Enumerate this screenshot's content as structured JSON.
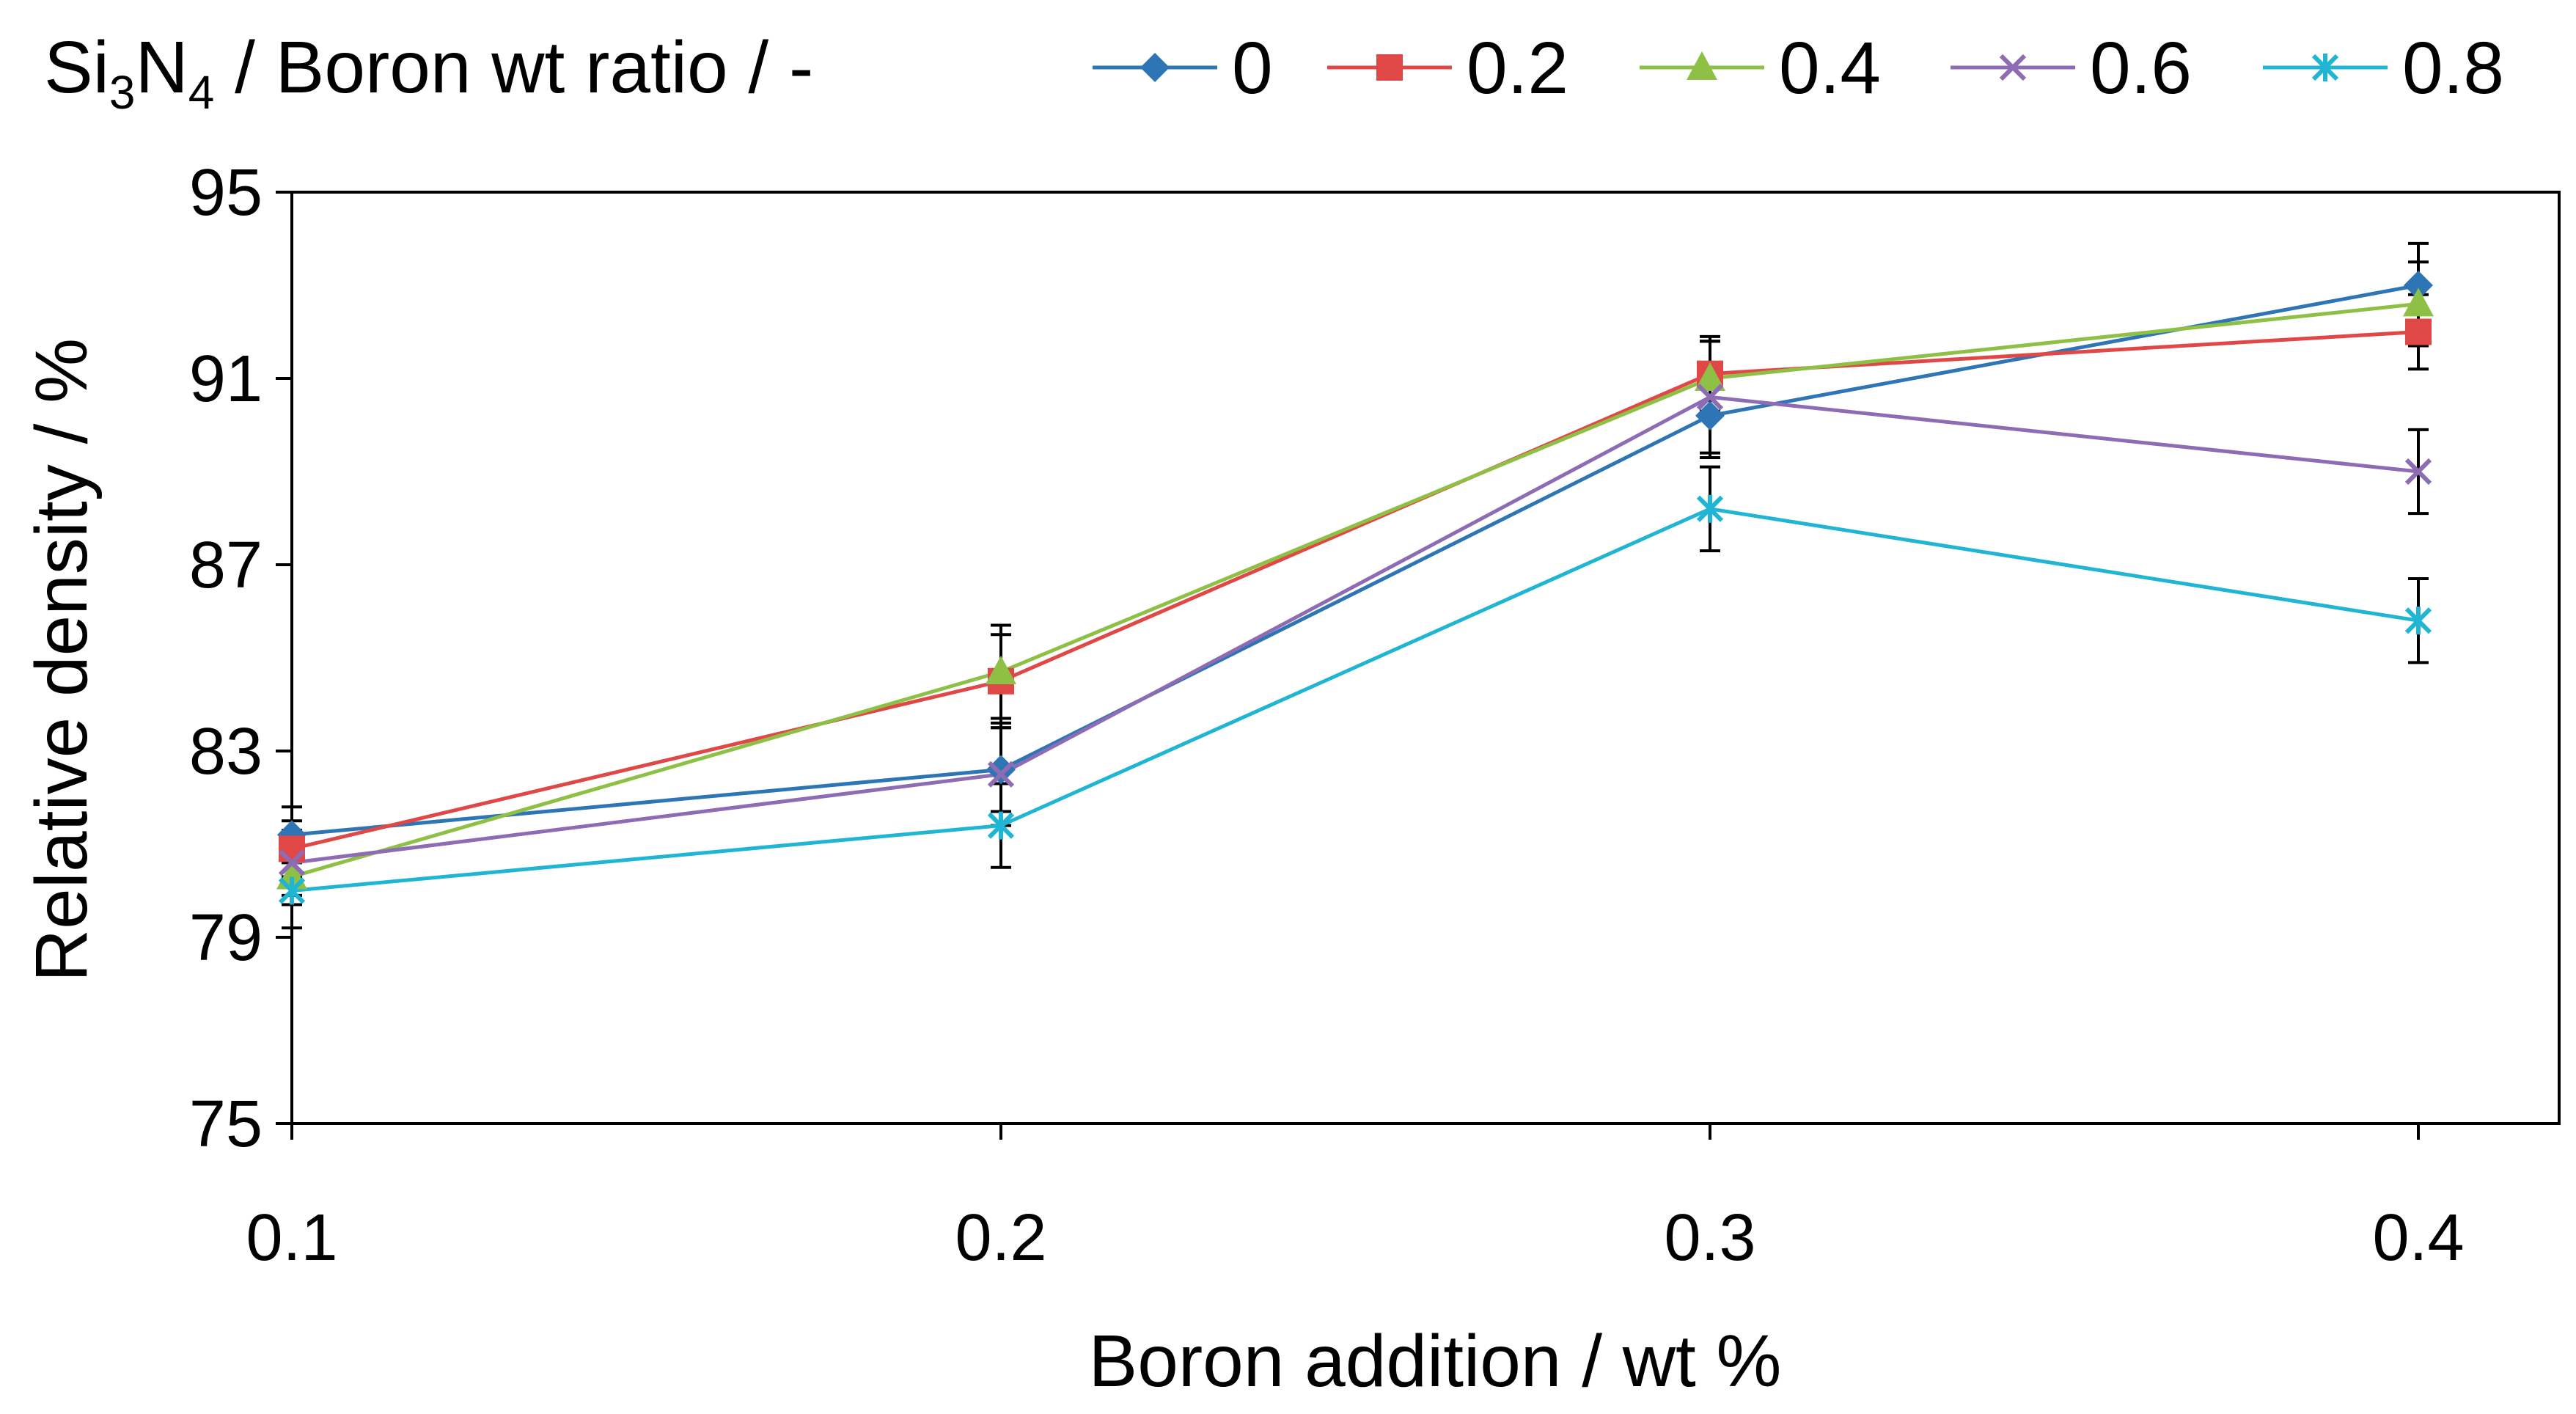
{
  "chart_data": {
    "type": "line",
    "title": "",
    "xlabel": "Boron addition / wt %",
    "ylabel": "Relative density / %",
    "x": [
      0.1,
      0.2,
      0.3,
      0.4
    ],
    "x_tick_labels": [
      "0.1",
      "0.2",
      "0.3",
      "0.4"
    ],
    "ylim": [
      75,
      95
    ],
    "y_ticks": [
      75,
      79,
      83,
      87,
      91,
      95
    ],
    "y_tick_labels": [
      "75",
      "79",
      "83",
      "87",
      "91",
      "95"
    ],
    "grid": false,
    "legend": {
      "title_parts": [
        "Si",
        "3",
        "N",
        "4",
        " / Boron wt ratio / -"
      ],
      "placement": "top"
    },
    "series": [
      {
        "name": "0",
        "color": "#2E75B6",
        "marker": "diamond",
        "values": [
          81.2,
          82.6,
          90.2,
          93.0
        ],
        "errors": [
          0.6,
          0.9,
          0.9,
          0.9
        ]
      },
      {
        "name": "0.2",
        "color": "#E04848",
        "marker": "square",
        "values": [
          80.9,
          84.5,
          91.1,
          92.0
        ],
        "errors": [
          0.6,
          1.0,
          0.8,
          0.8
        ]
      },
      {
        "name": "0.4",
        "color": "#8DC044",
        "marker": "triangle",
        "values": [
          80.3,
          84.7,
          91.0,
          92.6
        ],
        "errors": [
          0.6,
          1.0,
          0.8,
          0.9
        ]
      },
      {
        "name": "0.6",
        "color": "#8E6CB4",
        "marker": "x",
        "values": [
          80.6,
          82.5,
          90.6,
          89.0
        ],
        "errors": [
          0.7,
          1.1,
          1.2,
          0.9
        ]
      },
      {
        "name": "0.8",
        "color": "#1FB5D3",
        "marker": "asterisk",
        "values": [
          80.0,
          81.4,
          88.2,
          85.8
        ],
        "errors": [
          0.8,
          0.9,
          0.9,
          0.9
        ]
      }
    ]
  }
}
